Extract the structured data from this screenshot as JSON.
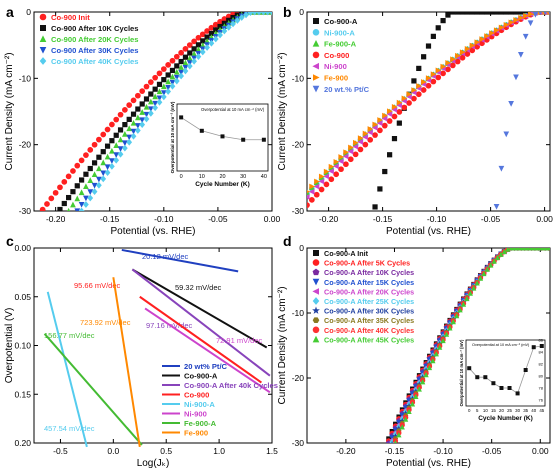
{
  "chart_data": [
    {
      "panel": "a",
      "type": "scatter",
      "xlabel": "Potential (vs. RHE)",
      "ylabel": "Current Density (mA cm⁻²)",
      "xlim": [
        -0.22,
        0.0
      ],
      "ylim": [
        -30,
        0
      ],
      "xticks": [
        -0.2,
        -0.15,
        -0.1,
        -0.05,
        0.0
      ],
      "xtick_labels": [
        "-0.20",
        "-0.15",
        "-0.10",
        "-0.05",
        "0.00"
      ],
      "yticks": [
        0,
        -10,
        -20,
        -30
      ],
      "ytick_labels": [
        "0",
        "-10",
        "-20",
        "-30"
      ],
      "legend": "top-left",
      "series": [
        {
          "name": "Co-900 Init",
          "color": "#ff2020",
          "marker": "circle",
          "onset": -0.03,
          "x30": -0.213,
          "k": 1.3
        },
        {
          "name": "Co-900 After 10K Cycles",
          "color": "#111111",
          "marker": "square",
          "onset": -0.025,
          "x30": -0.197,
          "k": 1.3
        },
        {
          "name": "Co-900 After 20K Cycles",
          "color": "#44cc33",
          "marker": "triangle-up",
          "onset": -0.022,
          "x30": -0.188,
          "k": 1.3
        },
        {
          "name": "Co-900 After 30K Cycles",
          "color": "#2050d0",
          "marker": "triangle-down",
          "onset": -0.02,
          "x30": -0.18,
          "k": 1.3
        },
        {
          "name": "Co-900 After 40K Cycles",
          "color": "#55ccee",
          "marker": "diamond",
          "onset": -0.018,
          "x30": -0.176,
          "k": 1.3
        }
      ],
      "inset": {
        "title": "Overpotential at 10 mA cm⁻² (mV)",
        "xlabel": "Cycle Number (K)",
        "ylabel": "Overpotential at 10 mA cm⁻² (mV)",
        "xlim": [
          -2,
          42
        ],
        "ylim": [
          50,
          110
        ],
        "xticks": [
          0,
          10,
          20,
          30,
          40
        ],
        "x": [
          0,
          10,
          20,
          30,
          40
        ],
        "y": [
          98,
          86,
          81,
          78,
          78
        ]
      }
    },
    {
      "panel": "b",
      "type": "scatter",
      "xlabel": "Potential (vs. RHE)",
      "ylabel": "Current Density (mA cm⁻²)",
      "xlim": [
        -0.22,
        0.005
      ],
      "ylim": [
        -30,
        0
      ],
      "xticks": [
        -0.2,
        -0.15,
        -0.1,
        -0.05,
        0.0
      ],
      "xtick_labels": [
        "-0.20",
        "-0.15",
        "-0.10",
        "-0.05",
        "0.00"
      ],
      "yticks": [
        0,
        -10,
        -20,
        -30
      ],
      "ytick_labels": [
        "0",
        "-10",
        "-20",
        "-30"
      ],
      "legend": "top-left",
      "series": [
        {
          "name": "Co-900-A",
          "color": "#111111",
          "marker": "square",
          "onset": -0.085,
          "x30": -0.158,
          "k": 1.5
        },
        {
          "name": "Ni-900-A",
          "color": "#55ccee",
          "marker": "circle",
          "onset": -0.005,
          "x30": -0.235,
          "k": 1.35
        },
        {
          "name": "Fe-900-A",
          "color": "#44cc33",
          "marker": "triangle-up",
          "onset": -0.005,
          "x30": -0.236,
          "k": 1.35
        },
        {
          "name": "Co-900",
          "color": "#ff2020",
          "marker": "circle",
          "onset": -0.005,
          "x30": -0.225,
          "k": 1.3
        },
        {
          "name": "Ni-900",
          "color": "#cc44cc",
          "marker": "triangle-left",
          "onset": -0.005,
          "x30": -0.232,
          "k": 1.35
        },
        {
          "name": "Fe-900",
          "color": "#ff8800",
          "marker": "triangle-right",
          "onset": -0.005,
          "x30": -0.237,
          "k": 1.35
        },
        {
          "name": "20 wt.% Pt/C",
          "color": "#5577dd",
          "marker": "triangle-down",
          "onset": -0.005,
          "x30": -0.045,
          "k": 1.8
        }
      ]
    },
    {
      "panel": "c",
      "type": "line",
      "xlabel": "Log(Jₖ)",
      "ylabel": "Overpotential (V)",
      "xlim": [
        -0.75,
        1.5
      ],
      "ylim": [
        0.0,
        0.2
      ],
      "y_inverted": true,
      "xticks": [
        -0.5,
        0.0,
        0.5,
        1.0,
        1.5
      ],
      "xtick_labels": [
        "-0.5",
        "0.0",
        "0.5",
        "1.0",
        "1.5"
      ],
      "yticks": [
        0.0,
        0.05,
        0.1,
        0.15,
        0.2
      ],
      "ytick_labels": [
        "0.00",
        "0.05",
        "0.10",
        "0.15",
        "0.20"
      ],
      "legend": "bottom-right",
      "series": [
        {
          "name": "20 wt% Pt/C",
          "color": "#2040c0",
          "x": [
            0.08,
            1.18
          ],
          "y": [
            0.002,
            0.024
          ],
          "slope_label": "20.12 mV/dec"
        },
        {
          "name": "Co-900-A",
          "color": "#111111",
          "x": [
            0.18,
            1.45
          ],
          "y": [
            0.022,
            0.102
          ],
          "slope_label": "59.32 mV/dec"
        },
        {
          "name": "Co-900-A After 40k Cycles",
          "color": "#8844bb",
          "x": [
            0.18,
            1.48
          ],
          "y": [
            0.022,
            0.131
          ],
          "slope_label": "97.16 mV/dec"
        },
        {
          "name": "Co-900",
          "color": "#ff2020",
          "x": [
            0.25,
            1.4
          ],
          "y": [
            0.05,
            0.138
          ],
          "slope_label": "95.66 mV/dec"
        },
        {
          "name": "Ni-900-A",
          "color": "#55ccee",
          "x": [
            -0.62,
            -0.25
          ],
          "y": [
            0.045,
            0.204
          ],
          "slope_label": "457.54 mV/dec"
        },
        {
          "name": "Ni-900",
          "color": "#cc44cc",
          "x": [
            0.3,
            1.48
          ],
          "y": [
            0.062,
            0.148
          ],
          "slope_label": "72.91 mV/dec"
        },
        {
          "name": "Fe-900-A",
          "color": "#44bb33",
          "x": [
            -0.65,
            0.27
          ],
          "y": [
            0.088,
            0.202
          ],
          "slope_label": "156.77 mV/dec"
        },
        {
          "name": "Fe-900",
          "color": "#ff8800",
          "x": [
            0.0,
            0.25
          ],
          "y": [
            0.03,
            0.204
          ],
          "slope_label": "723.92 mV/dec"
        }
      ]
    },
    {
      "panel": "d",
      "type": "scatter",
      "xlabel": "Potential (vs. RHE)",
      "ylabel": "Current Density (mA cm⁻²)",
      "xlim": [
        -0.24,
        0.01
      ],
      "ylim": [
        -30,
        0
      ],
      "xticks": [
        -0.2,
        -0.15,
        -0.1,
        -0.05,
        0.0
      ],
      "xtick_labels": [
        "-0.20",
        "-0.15",
        "-0.10",
        "-0.05",
        "0.00"
      ],
      "yticks": [
        0,
        -10,
        -20,
        -30
      ],
      "ytick_labels": [
        "0",
        "-10",
        "-20",
        "-30"
      ],
      "legend": "top-left",
      "series": [
        {
          "name": "Co-900-A Init",
          "color": "#111111",
          "marker": "square",
          "onset": -0.03,
          "x30": -0.158,
          "k": 1.4
        },
        {
          "name": "Co-900-A After 5K Cycles",
          "color": "#ff2020",
          "marker": "circle",
          "onset": -0.03,
          "x30": -0.157,
          "k": 1.4
        },
        {
          "name": "Co-900-A After 10K Cycles",
          "color": "#7a2aa0",
          "marker": "pentagon",
          "onset": -0.03,
          "x30": -0.156,
          "k": 1.4
        },
        {
          "name": "Co-900-A After 15K Cycles",
          "color": "#2050d0",
          "marker": "triangle-down",
          "onset": -0.03,
          "x30": -0.155,
          "k": 1.4
        },
        {
          "name": "Co-900-A After 20K Cycles",
          "color": "#cc44cc",
          "marker": "triangle-left",
          "onset": -0.03,
          "x30": -0.154,
          "k": 1.4
        },
        {
          "name": "Co-900-A After 25K Cycles",
          "color": "#55ccee",
          "marker": "diamond",
          "onset": -0.03,
          "x30": -0.153,
          "k": 1.4
        },
        {
          "name": "Co-900-A After 30K Cycles",
          "color": "#2040a0",
          "marker": "star",
          "onset": -0.03,
          "x30": -0.152,
          "k": 1.4
        },
        {
          "name": "Co-900-A After 35K Cycles",
          "color": "#8a7a20",
          "marker": "hexagon",
          "onset": -0.03,
          "x30": -0.151,
          "k": 1.4
        },
        {
          "name": "Co-900-A After 40K Cycles",
          "color": "#ff3030",
          "marker": "circle",
          "onset": -0.03,
          "x30": -0.15,
          "k": 1.4
        },
        {
          "name": "Co-900-A After 45K Cycles",
          "color": "#44cc33",
          "marker": "triangle-up",
          "onset": -0.03,
          "x30": -0.149,
          "k": 1.4
        }
      ],
      "inset": {
        "title": "Overpotential at 10 mA cm⁻² (mV)",
        "xlabel": "Cycle Number (K)",
        "ylabel": "Overpotential at 10 mA cm⁻² (mV)",
        "xlim": [
          -2,
          47
        ],
        "ylim": [
          75,
          86
        ],
        "xticks": [
          0,
          5,
          10,
          15,
          20,
          25,
          30,
          35,
          40,
          45
        ],
        "yticks": [
          76,
          78,
          80,
          82,
          84,
          86
        ],
        "x": [
          0,
          5,
          10,
          15,
          20,
          25,
          30,
          35,
          40,
          45
        ],
        "y": [
          81.3,
          79.8,
          79.8,
          78.8,
          78.0,
          78.0,
          77.1,
          81.0,
          84.8,
          85.0
        ]
      }
    }
  ],
  "panel_labels": [
    "a",
    "b",
    "c",
    "d"
  ]
}
